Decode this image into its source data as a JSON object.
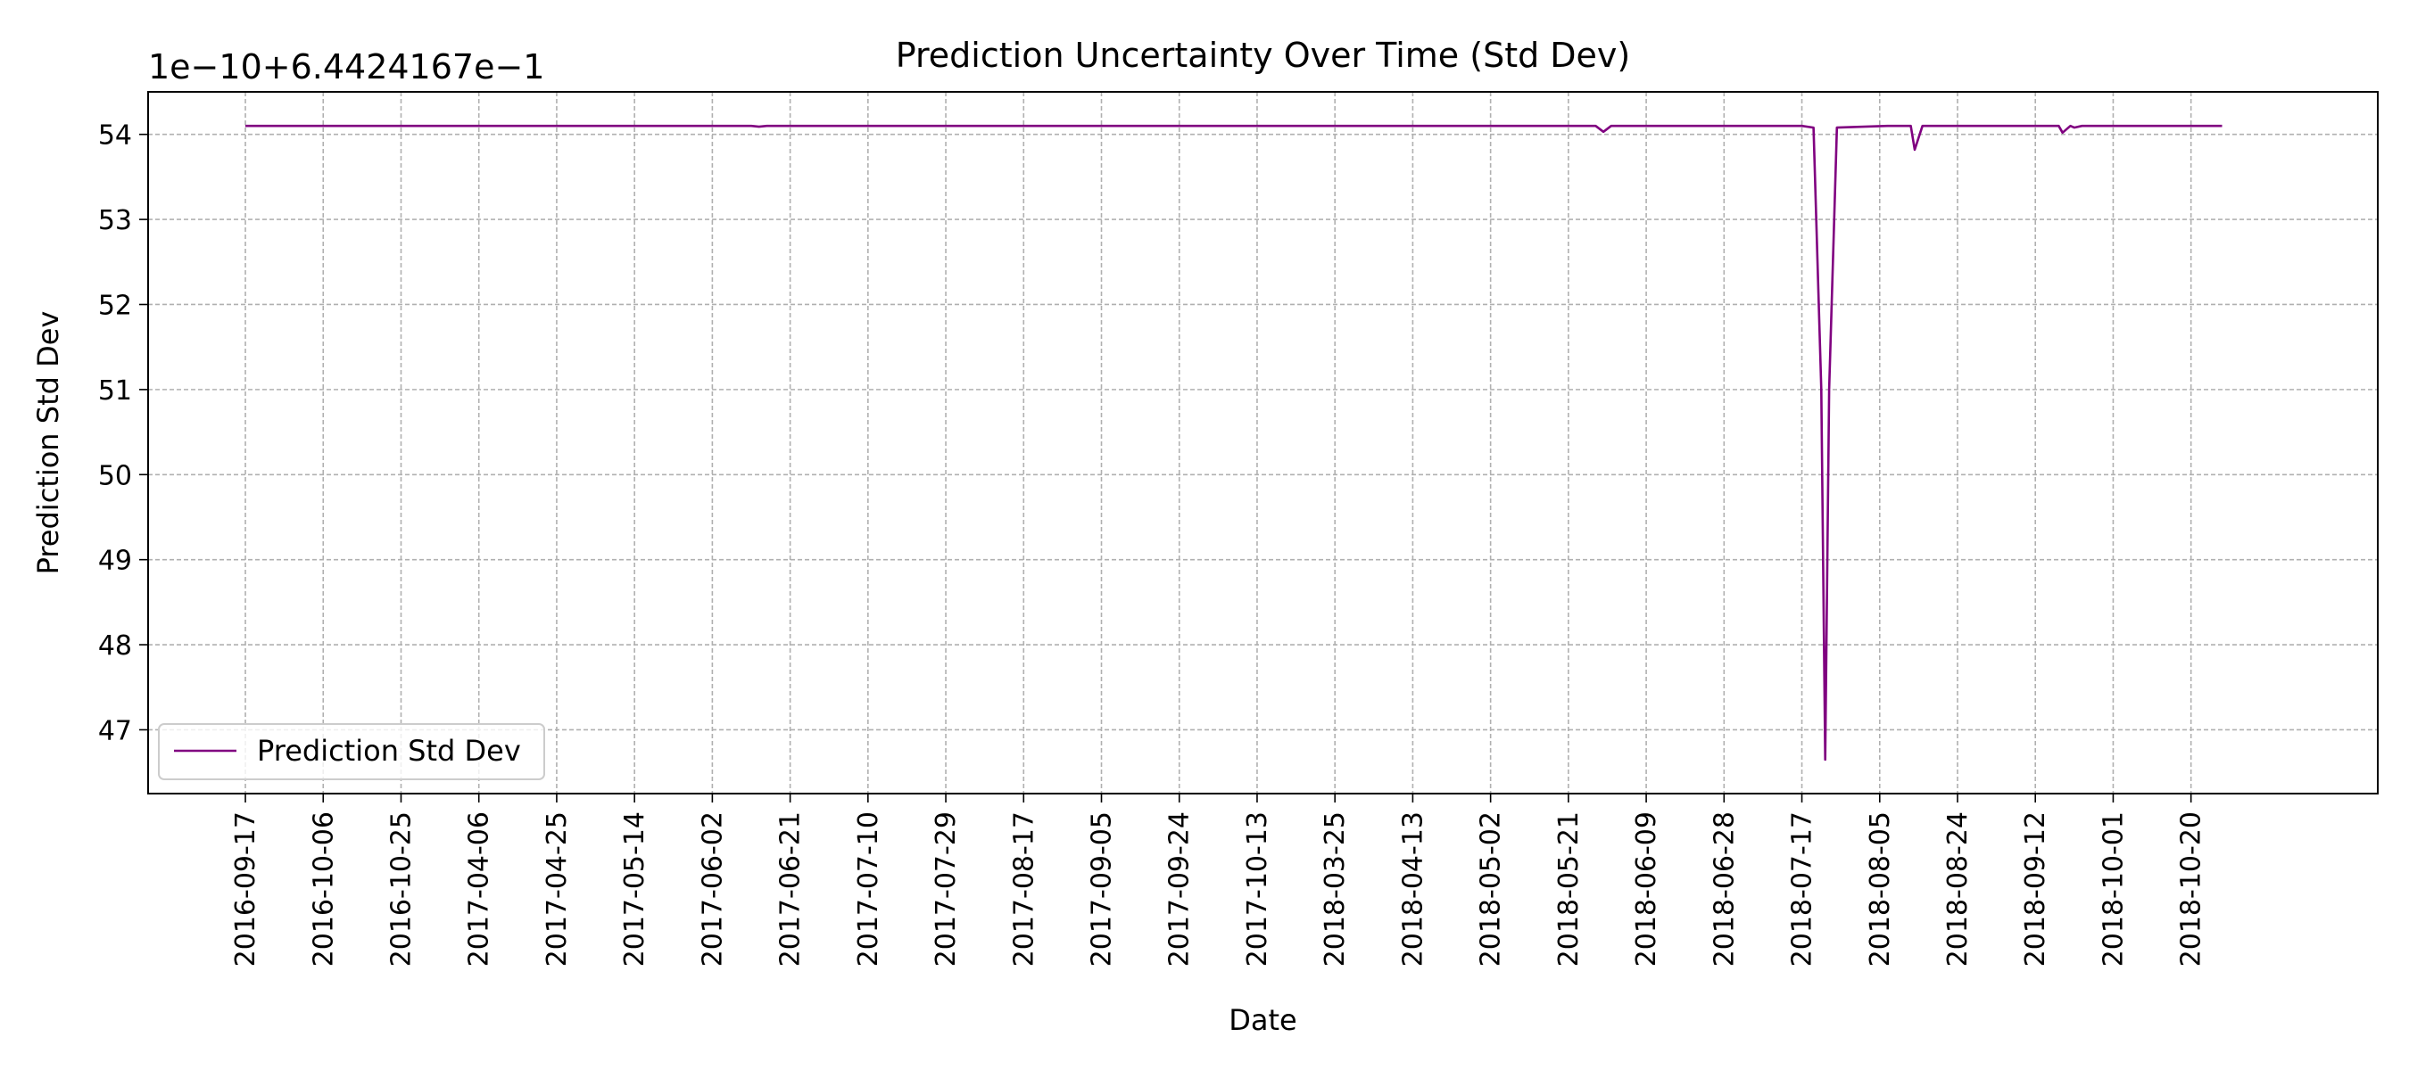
{
  "chart_data": {
    "type": "line",
    "title": "Prediction Uncertainty Over Time (Std Dev)",
    "xlabel": "Date",
    "ylabel": "Prediction Std Dev",
    "y_offset_label": "1e−10+6.4424167e−1",
    "y_offset": 0.64424167,
    "y_scale": 1e-10,
    "ylim": [
      46.25,
      54.5
    ],
    "y_ticks": [
      47,
      48,
      49,
      50,
      51,
      52,
      53,
      54
    ],
    "x_tick_labels": [
      "2016-09-17",
      "2016-10-06",
      "2016-10-25",
      "2017-04-06",
      "2017-04-25",
      "2017-05-14",
      "2017-06-02",
      "2017-06-21",
      "2017-07-10",
      "2017-07-29",
      "2017-08-17",
      "2017-09-05",
      "2017-09-24",
      "2017-10-13",
      "2018-03-25",
      "2018-04-13",
      "2018-05-02",
      "2018-05-21",
      "2018-06-09",
      "2018-06-28",
      "2018-07-17",
      "2018-08-05",
      "2018-08-24",
      "2018-09-12",
      "2018-10-01",
      "2018-10-20"
    ],
    "x_range_index": [
      -1.25,
      27.4
    ],
    "grid": true,
    "legend_position": "lower-left",
    "series": [
      {
        "name": "Prediction Std Dev",
        "color": "#800080",
        "x": [
          0,
          6.5,
          6.6,
          6.7,
          17.0,
          17.35,
          17.45,
          17.55,
          18.0,
          20.0,
          20.15,
          20.25,
          20.3,
          20.35,
          20.45,
          21.1,
          21.4,
          21.45,
          21.55,
          21.7,
          23.0,
          23.3,
          23.35,
          23.45,
          23.5,
          23.6,
          25.0,
          25.4
        ],
        "y": [
          54.1,
          54.1,
          54.09,
          54.1,
          54.1,
          54.1,
          54.03,
          54.1,
          54.1,
          54.1,
          54.08,
          51.0,
          46.65,
          51.0,
          54.08,
          54.1,
          54.1,
          53.82,
          54.1,
          54.1,
          54.1,
          54.1,
          54.02,
          54.1,
          54.08,
          54.1,
          54.1,
          54.1
        ]
      }
    ]
  }
}
